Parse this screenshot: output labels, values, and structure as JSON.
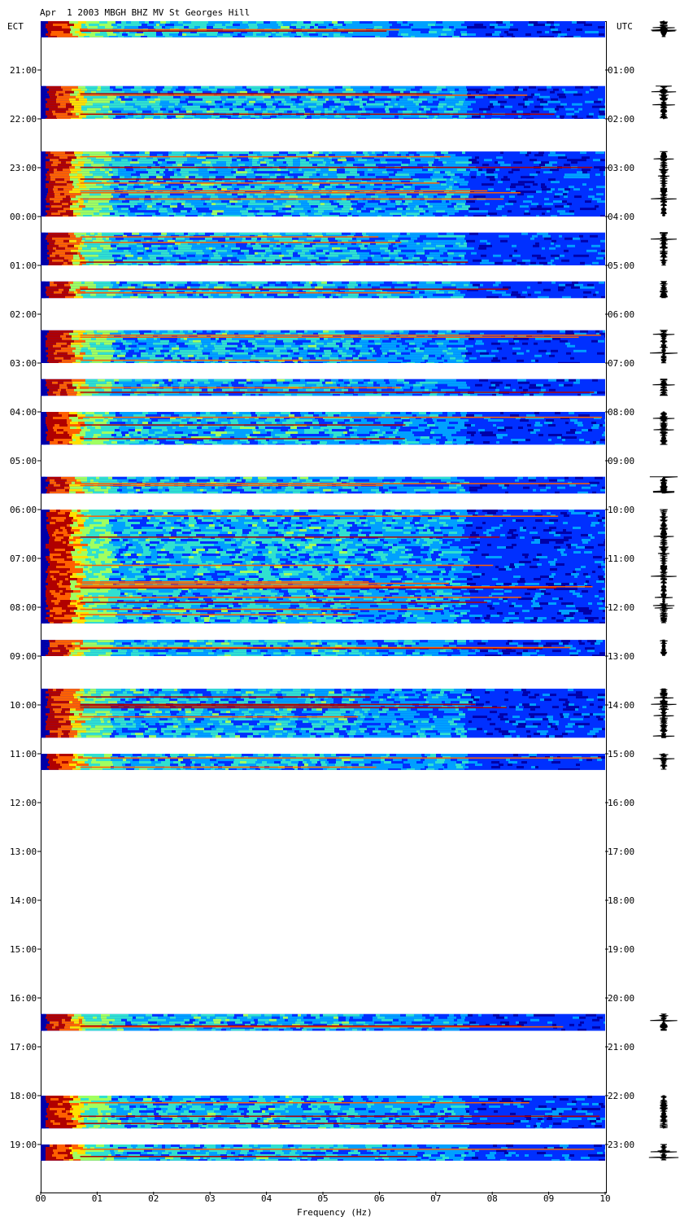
{
  "title": "Apr  1 2003 MBGH BHZ MV St Georges Hill",
  "left_axis_label": "ECT",
  "right_axis_label": "UTC",
  "chart_data": {
    "type": "heatmap",
    "title": "Apr  1 2003 MBGH BHZ MV St Georges Hill",
    "xlabel": "Frequency (Hz)",
    "xlim": [
      0,
      10
    ],
    "x_ticks": [
      "00",
      "01",
      "02",
      "03",
      "04",
      "05",
      "06",
      "07",
      "08",
      "09",
      "10"
    ],
    "y_ticks_left": [
      "21:00",
      "22:00",
      "23:00",
      "00:00",
      "01:00",
      "02:00",
      "03:00",
      "04:00",
      "05:00",
      "06:00",
      "07:00",
      "08:00",
      "09:00",
      "10:00",
      "11:00",
      "12:00",
      "13:00",
      "14:00",
      "15:00",
      "16:00",
      "17:00",
      "18:00",
      "19:00"
    ],
    "y_ticks_right": [
      "01:00",
      "02:00",
      "03:00",
      "04:00",
      "05:00",
      "06:00",
      "07:00",
      "08:00",
      "09:00",
      "10:00",
      "11:00",
      "12:00",
      "13:00",
      "14:00",
      "15:00",
      "16:00",
      "17:00",
      "18:00",
      "19:00",
      "20:00",
      "21:00",
      "22:00",
      "23:00"
    ],
    "segments_hours": [
      {
        "start": 0.0,
        "end": 0.33
      },
      {
        "start": 1.33,
        "end": 2.0
      },
      {
        "start": 2.67,
        "end": 4.0
      },
      {
        "start": 4.33,
        "end": 5.0
      },
      {
        "start": 5.33,
        "end": 5.67
      },
      {
        "start": 6.33,
        "end": 7.0
      },
      {
        "start": 7.33,
        "end": 7.67
      },
      {
        "start": 8.0,
        "end": 8.67
      },
      {
        "start": 9.33,
        "end": 9.67
      },
      {
        "start": 10.0,
        "end": 12.33
      },
      {
        "start": 12.67,
        "end": 13.0
      },
      {
        "start": 13.67,
        "end": 14.67
      },
      {
        "start": 15.0,
        "end": 15.33
      },
      {
        "start": 20.33,
        "end": 20.67
      },
      {
        "start": 22.0,
        "end": 22.67
      },
      {
        "start": 23.0,
        "end": 23.33
      }
    ],
    "colormap": [
      "#0000a8",
      "#0030ff",
      "#00a0ff",
      "#30e0d0",
      "#a0ff60",
      "#ffe000",
      "#ff6000",
      "#b00000"
    ]
  }
}
